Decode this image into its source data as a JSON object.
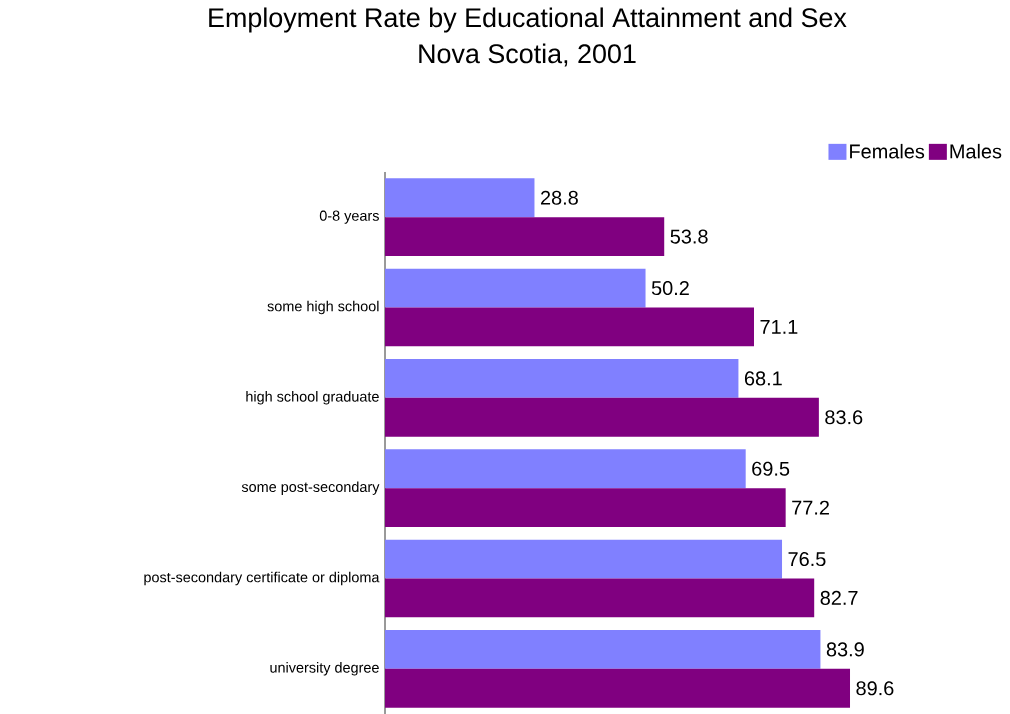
{
  "chart_data": {
    "type": "bar",
    "orientation": "horizontal",
    "title": "Employment Rate by Educational Attainment and Sex",
    "subtitle": "Nova Scotia, 2001",
    "categories": [
      "0-8 years",
      "some high school",
      "high school graduate",
      "some post-secondary",
      "post-secondary certificate or diploma",
      "university degree"
    ],
    "series": [
      {
        "name": "Females",
        "color": "#8080ff",
        "values": [
          28.8,
          50.2,
          68.1,
          69.5,
          76.5,
          83.9
        ]
      },
      {
        "name": "Males",
        "color": "#800080",
        "values": [
          53.8,
          71.1,
          83.6,
          77.2,
          82.7,
          89.6
        ]
      }
    ],
    "data_labels": true,
    "legend": "top right",
    "tick_labels": "y"
  }
}
